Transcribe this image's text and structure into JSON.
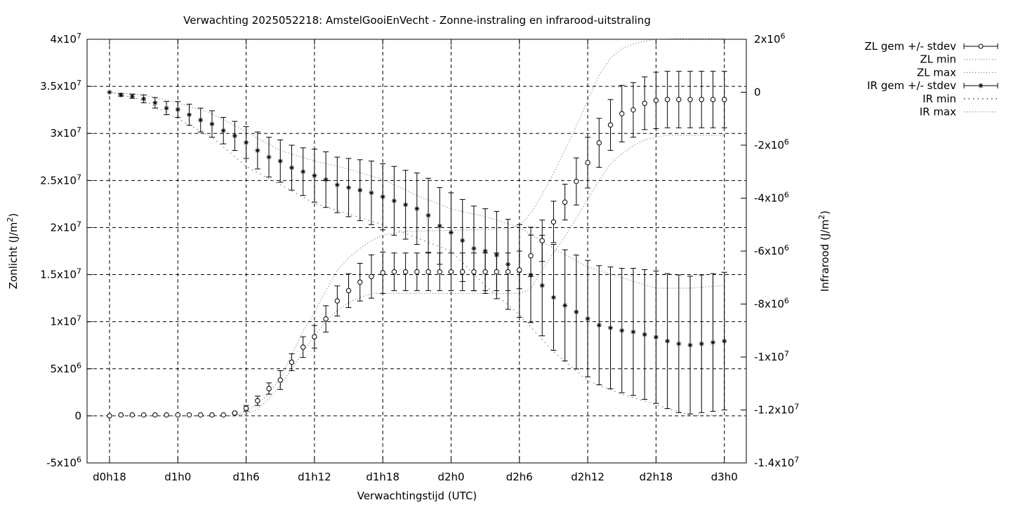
{
  "chart_data": {
    "type": "line",
    "title": "Verwachting 2025052218: AmstelGooiEnVecht - Zonne-instraling en infrarood-uitstraling",
    "xlabel": "Verwachtingstijd (UTC)",
    "ylabel": {
      "base": "Zonlicht (J/m",
      "sup": "2",
      "tail": ")"
    },
    "y2label": {
      "base": "Infrarood (J/m",
      "sup": "2",
      "tail": ")"
    },
    "x_range_hours": [
      -8,
      64
    ],
    "ylim": [
      -5000000,
      40000000
    ],
    "y2lim": [
      -14000000,
      2000000
    ],
    "grid": true,
    "legend_position": "outside-top-right",
    "x_ticks": [
      {
        "x": 0,
        "label": "d0h18"
      },
      {
        "x": 6,
        "label": "d1h0"
      },
      {
        "x": 12,
        "label": "d1h6"
      },
      {
        "x": 18,
        "label": "d1h12"
      },
      {
        "x": 24,
        "label": "d1h18"
      },
      {
        "x": 30,
        "label": "d2h0"
      },
      {
        "x": 36,
        "label": "d2h6"
      },
      {
        "x": 42,
        "label": "d2h12"
      },
      {
        "x": 48,
        "label": "d2h18"
      },
      {
        "x": 54,
        "label": "d3h0"
      }
    ],
    "y_ticks": [
      {
        "v": -5000000,
        "base": "-5x10",
        "exp": "6"
      },
      {
        "v": 0,
        "base": "0",
        "exp": ""
      },
      {
        "v": 5000000,
        "base": "5x10",
        "exp": "6"
      },
      {
        "v": 10000000,
        "base": "1x10",
        "exp": "7"
      },
      {
        "v": 15000000,
        "base": "1.5x10",
        "exp": "7"
      },
      {
        "v": 20000000,
        "base": "2x10",
        "exp": "7"
      },
      {
        "v": 25000000,
        "base": "2.5x10",
        "exp": "7"
      },
      {
        "v": 30000000,
        "base": "3x10",
        "exp": "7"
      },
      {
        "v": 35000000,
        "base": "3.5x10",
        "exp": "7"
      },
      {
        "v": 40000000,
        "base": "4x10",
        "exp": "7"
      }
    ],
    "y2_ticks": [
      {
        "v": -14000000,
        "base": "-1.4x10",
        "exp": "7"
      },
      {
        "v": -12000000,
        "base": "-1.2x10",
        "exp": "7"
      },
      {
        "v": -10000000,
        "base": "-1x10",
        "exp": "7"
      },
      {
        "v": -8000000,
        "base": "-8x10",
        "exp": "6"
      },
      {
        "v": -6000000,
        "base": "-6x10",
        "exp": "6"
      },
      {
        "v": -4000000,
        "base": "-4x10",
        "exp": "6"
      },
      {
        "v": -2000000,
        "base": "-2x10",
        "exp": "6"
      },
      {
        "v": 0,
        "base": "0",
        "exp": ""
      },
      {
        "v": 2000000,
        "base": "2x10",
        "exp": "6"
      }
    ],
    "zl_points": [
      [
        0,
        0,
        0
      ],
      [
        1,
        100000,
        0
      ],
      [
        2,
        100000,
        0
      ],
      [
        3,
        100000,
        0
      ],
      [
        4,
        100000,
        0
      ],
      [
        5,
        100000,
        0
      ],
      [
        6,
        100000,
        0
      ],
      [
        7,
        100000,
        0
      ],
      [
        8,
        100000,
        0
      ],
      [
        9,
        100000,
        0
      ],
      [
        10,
        100000,
        0
      ],
      [
        11,
        300000,
        100000
      ],
      [
        12,
        800000,
        300000
      ],
      [
        13,
        1600000,
        500000
      ],
      [
        14,
        2900000,
        600000
      ],
      [
        15,
        3800000,
        1000000
      ],
      [
        16,
        5700000,
        900000
      ],
      [
        17,
        7300000,
        1100000
      ],
      [
        18,
        8400000,
        1200000
      ],
      [
        19,
        10300000,
        1400000
      ],
      [
        20,
        12200000,
        1600000
      ],
      [
        21,
        13300000,
        1800000
      ],
      [
        22,
        14200000,
        2000000
      ],
      [
        23,
        14800000,
        2300000
      ],
      [
        24,
        15200000,
        2200000
      ],
      [
        25,
        15300000,
        2000000
      ],
      [
        26,
        15300000,
        2000000
      ],
      [
        27,
        15300000,
        2000000
      ],
      [
        28,
        15300000,
        2000000
      ],
      [
        29,
        15300000,
        2000000
      ],
      [
        30,
        15300000,
        2000000
      ],
      [
        31,
        15300000,
        2000000
      ],
      [
        32,
        15300000,
        2000000
      ],
      [
        33,
        15300000,
        2000000
      ],
      [
        34,
        15300000,
        2000000
      ],
      [
        35,
        15300000,
        2000000
      ],
      [
        36,
        15500000,
        2000000
      ],
      [
        37,
        17000000,
        2200000
      ],
      [
        38,
        18600000,
        2200000
      ],
      [
        39,
        20600000,
        2200000
      ],
      [
        40,
        22700000,
        1900000
      ],
      [
        41,
        24900000,
        2500000
      ],
      [
        42,
        26900000,
        2700000
      ],
      [
        43,
        29000000,
        2600000
      ],
      [
        44,
        30900000,
        2700000
      ],
      [
        45,
        32100000,
        3000000
      ],
      [
        46,
        32500000,
        2900000
      ],
      [
        47,
        33200000,
        2800000
      ],
      [
        48,
        33500000,
        3000000
      ],
      [
        49,
        33600000,
        3000000
      ],
      [
        50,
        33600000,
        3000000
      ],
      [
        51,
        33600000,
        3000000
      ],
      [
        52,
        33600000,
        3000000
      ],
      [
        53,
        33600000,
        3000000
      ],
      [
        54,
        33600000,
        3000000
      ]
    ],
    "ir_points": [
      [
        0,
        0,
        0
      ],
      [
        1,
        -100000,
        50000
      ],
      [
        2,
        -150000,
        80000
      ],
      [
        3,
        -250000,
        150000
      ],
      [
        4,
        -400000,
        200000
      ],
      [
        5,
        -600000,
        250000
      ],
      [
        6,
        -650000,
        300000
      ],
      [
        7,
        -850000,
        400000
      ],
      [
        8,
        -1050000,
        450000
      ],
      [
        9,
        -1200000,
        500000
      ],
      [
        10,
        -1450000,
        500000
      ],
      [
        11,
        -1650000,
        550000
      ],
      [
        12,
        -1900000,
        600000
      ],
      [
        13,
        -2200000,
        700000
      ],
      [
        14,
        -2450000,
        750000
      ],
      [
        15,
        -2600000,
        800000
      ],
      [
        16,
        -2850000,
        850000
      ],
      [
        17,
        -3000000,
        900000
      ],
      [
        18,
        -3150000,
        1000000
      ],
      [
        19,
        -3300000,
        1050000
      ],
      [
        20,
        -3500000,
        1050000
      ],
      [
        21,
        -3600000,
        1100000
      ],
      [
        22,
        -3700000,
        1150000
      ],
      [
        23,
        -3800000,
        1200000
      ],
      [
        24,
        -3950000,
        1250000
      ],
      [
        25,
        -4100000,
        1300000
      ],
      [
        26,
        -4250000,
        1300000
      ],
      [
        27,
        -4400000,
        1350000
      ],
      [
        28,
        -4650000,
        1400000
      ],
      [
        29,
        -5050000,
        1450000
      ],
      [
        30,
        -5300000,
        1500000
      ],
      [
        31,
        -5600000,
        1550000
      ],
      [
        32,
        -5900000,
        1600000
      ],
      [
        33,
        -6000000,
        1600000
      ],
      [
        34,
        -6150000,
        1650000
      ],
      [
        35,
        -6500000,
        1700000
      ],
      [
        36,
        -6750000,
        1750000
      ],
      [
        37,
        -6900000,
        1800000
      ],
      [
        38,
        -7300000,
        1900000
      ],
      [
        39,
        -7750000,
        2000000
      ],
      [
        40,
        -8050000,
        2100000
      ],
      [
        41,
        -8300000,
        2150000
      ],
      [
        42,
        -8550000,
        2200000
      ],
      [
        43,
        -8800000,
        2250000
      ],
      [
        44,
        -8900000,
        2300000
      ],
      [
        45,
        -9000000,
        2350000
      ],
      [
        46,
        -9050000,
        2400000
      ],
      [
        47,
        -9150000,
        2450000
      ],
      [
        48,
        -9250000,
        2500000
      ],
      [
        49,
        -9400000,
        2550000
      ],
      [
        50,
        -9500000,
        2600000
      ],
      [
        51,
        -9550000,
        2600000
      ],
      [
        52,
        -9500000,
        2600000
      ],
      [
        53,
        -9450000,
        2600000
      ],
      [
        54,
        -9400000,
        2600000
      ]
    ],
    "zl_min": [
      [
        0,
        0
      ],
      [
        11,
        0
      ],
      [
        12,
        200000
      ],
      [
        13,
        700000
      ],
      [
        14,
        1800000
      ],
      [
        15,
        3200000
      ],
      [
        16,
        5000000
      ],
      [
        17,
        6800000
      ],
      [
        18,
        8500000
      ],
      [
        19,
        10000000
      ],
      [
        20,
        11200000
      ],
      [
        21,
        12000000
      ],
      [
        22,
        12600000
      ],
      [
        23,
        13000000
      ],
      [
        24,
        13000000
      ],
      [
        26,
        13000000
      ],
      [
        30,
        13000000
      ],
      [
        33,
        13000000
      ],
      [
        36,
        13000000
      ],
      [
        37,
        13500000
      ],
      [
        38,
        15500000
      ],
      [
        39,
        17300000
      ],
      [
        40,
        19000000
      ],
      [
        41,
        21000000
      ],
      [
        42,
        23000000
      ],
      [
        43,
        25000000
      ],
      [
        44,
        26800000
      ],
      [
        45,
        27800000
      ],
      [
        46,
        28700000
      ],
      [
        47,
        29300000
      ],
      [
        48,
        29600000
      ],
      [
        49,
        29800000
      ],
      [
        50,
        29800000
      ],
      [
        54,
        29800000
      ]
    ],
    "zl_max": [
      [
        0,
        0
      ],
      [
        11,
        0
      ],
      [
        12,
        500000
      ],
      [
        13,
        1200000
      ],
      [
        14,
        2400000
      ],
      [
        15,
        4000000
      ],
      [
        16,
        6500000
      ],
      [
        17,
        9000000
      ],
      [
        18,
        11000000
      ],
      [
        19,
        13300000
      ],
      [
        20,
        15400000
      ],
      [
        21,
        16800000
      ],
      [
        22,
        17800000
      ],
      [
        23,
        18600000
      ],
      [
        24,
        19200000
      ],
      [
        26,
        19600000
      ],
      [
        30,
        19700000
      ],
      [
        33,
        19800000
      ],
      [
        35,
        19900000
      ],
      [
        36,
        20200000
      ],
      [
        37,
        21500000
      ],
      [
        38,
        23500000
      ],
      [
        39,
        25800000
      ],
      [
        40,
        28200000
      ],
      [
        41,
        30800000
      ],
      [
        42,
        33500000
      ],
      [
        43,
        36200000
      ],
      [
        44,
        38000000
      ],
      [
        45,
        39000000
      ],
      [
        46,
        39500000
      ],
      [
        47,
        39800000
      ],
      [
        48,
        40000000
      ],
      [
        50,
        40100000
      ],
      [
        54,
        40100000
      ]
    ],
    "ir_min": [
      [
        0,
        0
      ],
      [
        3,
        -300000
      ],
      [
        6,
        -1000000
      ],
      [
        9,
        -1700000
      ],
      [
        12,
        -2800000
      ],
      [
        15,
        -3500000
      ],
      [
        18,
        -4200000
      ],
      [
        21,
        -4600000
      ],
      [
        24,
        -5000000
      ],
      [
        27,
        -5500000
      ],
      [
        30,
        -6000000
      ],
      [
        33,
        -7300000
      ],
      [
        36,
        -8400000
      ],
      [
        39,
        -9800000
      ],
      [
        42,
        -10900000
      ],
      [
        45,
        -11400000
      ],
      [
        48,
        -11800000
      ],
      [
        51,
        -12200000
      ],
      [
        54,
        -12200000
      ]
    ],
    "ir_max": [
      [
        0,
        0
      ],
      [
        3,
        -100000
      ],
      [
        6,
        -400000
      ],
      [
        9,
        -800000
      ],
      [
        12,
        -1500000
      ],
      [
        15,
        -2200000
      ],
      [
        18,
        -2600000
      ],
      [
        21,
        -2900000
      ],
      [
        24,
        -3300000
      ],
      [
        27,
        -3900000
      ],
      [
        30,
        -4400000
      ],
      [
        33,
        -4700000
      ],
      [
        36,
        -5100000
      ],
      [
        39,
        -5900000
      ],
      [
        42,
        -6600000
      ],
      [
        45,
        -7000000
      ],
      [
        48,
        -7400000
      ],
      [
        51,
        -7400000
      ],
      [
        54,
        -7300000
      ]
    ],
    "series": [
      {
        "name": "ZL gem +/- stdev",
        "style": "errorbar-circle"
      },
      {
        "name": "ZL min",
        "style": "dotted"
      },
      {
        "name": "ZL max",
        "style": "dotted"
      },
      {
        "name": "IR gem +/- stdev",
        "style": "errorbar-star"
      },
      {
        "name": "IR min",
        "style": "dotted-sparse"
      },
      {
        "name": "IR max",
        "style": "dotted"
      }
    ]
  }
}
